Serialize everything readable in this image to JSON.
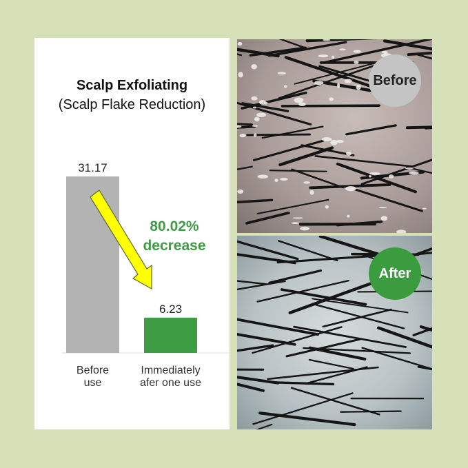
{
  "chart_data": {
    "type": "bar",
    "title": "Scalp Exfoliating",
    "subtitle": "(Scalp Flake Reduction)",
    "categories": [
      "Before use",
      "Immediately afer one use"
    ],
    "category_lines": [
      [
        "Before",
        "use"
      ],
      [
        "Immediately",
        "afer one use"
      ]
    ],
    "values": [
      31.17,
      6.23
    ],
    "value_labels": [
      "31.17",
      "6.23"
    ],
    "bar_colors": [
      "#b3b3b3",
      "#3d9c44"
    ],
    "ylim": [
      0,
      31.17
    ],
    "grid": false,
    "annotation": {
      "lines": [
        "80.02%",
        "decrease"
      ],
      "color": "#3d9c44",
      "arrow_color": "#ffff00"
    }
  },
  "photos": {
    "before_label": "Before",
    "after_label": "After"
  },
  "colors": {
    "background": "#d6e1b8",
    "accent": "#3a9c3f"
  }
}
